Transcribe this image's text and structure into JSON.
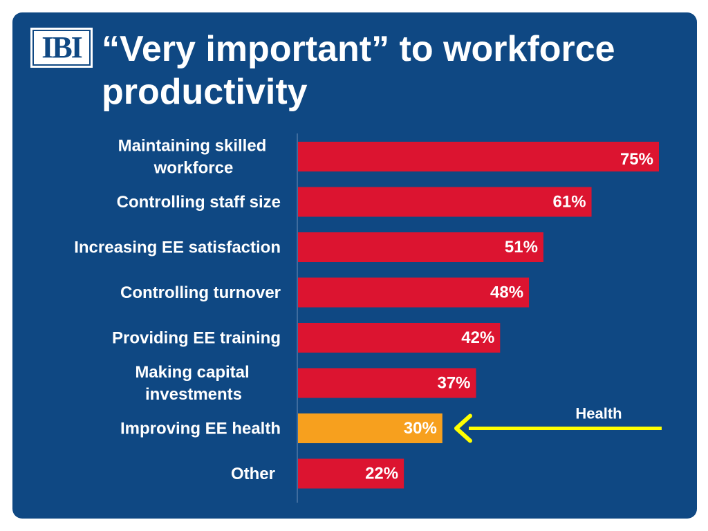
{
  "slide": {
    "logo_text": "IBI",
    "title": "“Very important” to workforce productivity"
  },
  "colors": {
    "background": "#0f4883",
    "bar": "#dc1430",
    "highlight_bar": "#f7a01e",
    "arrow": "#ffff00",
    "text": "#ffffff"
  },
  "chart_data": {
    "type": "bar",
    "orientation": "horizontal",
    "title": "“Very important” to workforce productivity",
    "categories": [
      [
        "Maintaining skilled",
        "workforce"
      ],
      [
        "Controlling staff size"
      ],
      [
        "Increasing EE satisfaction"
      ],
      [
        "Controlling turnover"
      ],
      [
        "Providing EE training"
      ],
      [
        "Making capital",
        "investments"
      ],
      [
        "Improving EE health"
      ],
      [
        "Other"
      ]
    ],
    "values": [
      75,
      61,
      51,
      48,
      42,
      37,
      30,
      22
    ],
    "value_labels": [
      "75%",
      "61%",
      "51%",
      "48%",
      "42%",
      "37%",
      "30%",
      "22%"
    ],
    "highlight_index": 6,
    "xlim": [
      0,
      75
    ],
    "grid": false,
    "annotation": {
      "text": "Health",
      "target_index": 6,
      "icon": "arrow-left-icon"
    }
  }
}
